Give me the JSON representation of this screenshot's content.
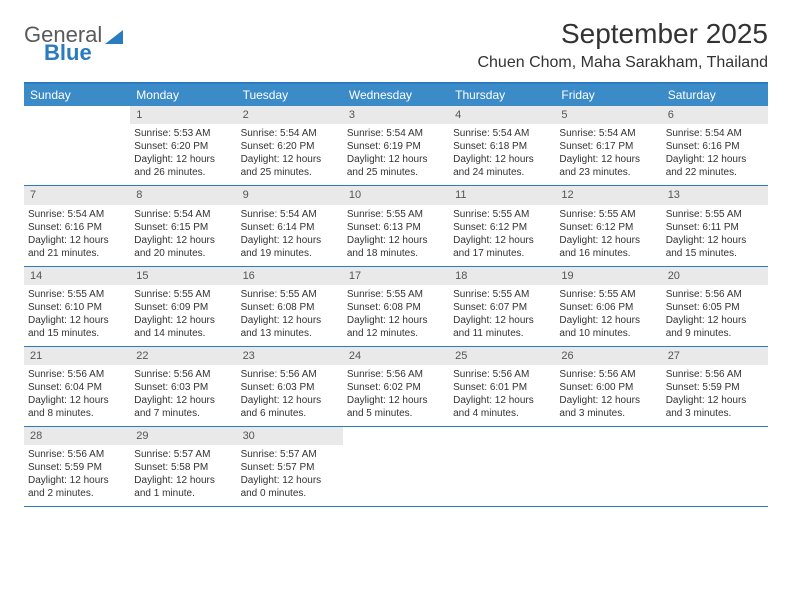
{
  "logo": {
    "word1": "General",
    "word2": "Blue"
  },
  "title": "September 2025",
  "location": "Chuen Chom, Maha Sarakham, Thailand",
  "colors": {
    "header_bar": "#3b8bc9",
    "rule": "#2a7bbf",
    "day_num_bg": "#e9e9e9",
    "text": "#333333",
    "logo_blue": "#2a7bbf"
  },
  "weekdays": [
    "Sunday",
    "Monday",
    "Tuesday",
    "Wednesday",
    "Thursday",
    "Friday",
    "Saturday"
  ],
  "weeks": [
    [
      {
        "num": "",
        "sunrise": "",
        "sunset": "",
        "daylight": ""
      },
      {
        "num": "1",
        "sunrise": "Sunrise: 5:53 AM",
        "sunset": "Sunset: 6:20 PM",
        "daylight": "Daylight: 12 hours and 26 minutes."
      },
      {
        "num": "2",
        "sunrise": "Sunrise: 5:54 AM",
        "sunset": "Sunset: 6:20 PM",
        "daylight": "Daylight: 12 hours and 25 minutes."
      },
      {
        "num": "3",
        "sunrise": "Sunrise: 5:54 AM",
        "sunset": "Sunset: 6:19 PM",
        "daylight": "Daylight: 12 hours and 25 minutes."
      },
      {
        "num": "4",
        "sunrise": "Sunrise: 5:54 AM",
        "sunset": "Sunset: 6:18 PM",
        "daylight": "Daylight: 12 hours and 24 minutes."
      },
      {
        "num": "5",
        "sunrise": "Sunrise: 5:54 AM",
        "sunset": "Sunset: 6:17 PM",
        "daylight": "Daylight: 12 hours and 23 minutes."
      },
      {
        "num": "6",
        "sunrise": "Sunrise: 5:54 AM",
        "sunset": "Sunset: 6:16 PM",
        "daylight": "Daylight: 12 hours and 22 minutes."
      }
    ],
    [
      {
        "num": "7",
        "sunrise": "Sunrise: 5:54 AM",
        "sunset": "Sunset: 6:16 PM",
        "daylight": "Daylight: 12 hours and 21 minutes."
      },
      {
        "num": "8",
        "sunrise": "Sunrise: 5:54 AM",
        "sunset": "Sunset: 6:15 PM",
        "daylight": "Daylight: 12 hours and 20 minutes."
      },
      {
        "num": "9",
        "sunrise": "Sunrise: 5:54 AM",
        "sunset": "Sunset: 6:14 PM",
        "daylight": "Daylight: 12 hours and 19 minutes."
      },
      {
        "num": "10",
        "sunrise": "Sunrise: 5:55 AM",
        "sunset": "Sunset: 6:13 PM",
        "daylight": "Daylight: 12 hours and 18 minutes."
      },
      {
        "num": "11",
        "sunrise": "Sunrise: 5:55 AM",
        "sunset": "Sunset: 6:12 PM",
        "daylight": "Daylight: 12 hours and 17 minutes."
      },
      {
        "num": "12",
        "sunrise": "Sunrise: 5:55 AM",
        "sunset": "Sunset: 6:12 PM",
        "daylight": "Daylight: 12 hours and 16 minutes."
      },
      {
        "num": "13",
        "sunrise": "Sunrise: 5:55 AM",
        "sunset": "Sunset: 6:11 PM",
        "daylight": "Daylight: 12 hours and 15 minutes."
      }
    ],
    [
      {
        "num": "14",
        "sunrise": "Sunrise: 5:55 AM",
        "sunset": "Sunset: 6:10 PM",
        "daylight": "Daylight: 12 hours and 15 minutes."
      },
      {
        "num": "15",
        "sunrise": "Sunrise: 5:55 AM",
        "sunset": "Sunset: 6:09 PM",
        "daylight": "Daylight: 12 hours and 14 minutes."
      },
      {
        "num": "16",
        "sunrise": "Sunrise: 5:55 AM",
        "sunset": "Sunset: 6:08 PM",
        "daylight": "Daylight: 12 hours and 13 minutes."
      },
      {
        "num": "17",
        "sunrise": "Sunrise: 5:55 AM",
        "sunset": "Sunset: 6:08 PM",
        "daylight": "Daylight: 12 hours and 12 minutes."
      },
      {
        "num": "18",
        "sunrise": "Sunrise: 5:55 AM",
        "sunset": "Sunset: 6:07 PM",
        "daylight": "Daylight: 12 hours and 11 minutes."
      },
      {
        "num": "19",
        "sunrise": "Sunrise: 5:55 AM",
        "sunset": "Sunset: 6:06 PM",
        "daylight": "Daylight: 12 hours and 10 minutes."
      },
      {
        "num": "20",
        "sunrise": "Sunrise: 5:56 AM",
        "sunset": "Sunset: 6:05 PM",
        "daylight": "Daylight: 12 hours and 9 minutes."
      }
    ],
    [
      {
        "num": "21",
        "sunrise": "Sunrise: 5:56 AM",
        "sunset": "Sunset: 6:04 PM",
        "daylight": "Daylight: 12 hours and 8 minutes."
      },
      {
        "num": "22",
        "sunrise": "Sunrise: 5:56 AM",
        "sunset": "Sunset: 6:03 PM",
        "daylight": "Daylight: 12 hours and 7 minutes."
      },
      {
        "num": "23",
        "sunrise": "Sunrise: 5:56 AM",
        "sunset": "Sunset: 6:03 PM",
        "daylight": "Daylight: 12 hours and 6 minutes."
      },
      {
        "num": "24",
        "sunrise": "Sunrise: 5:56 AM",
        "sunset": "Sunset: 6:02 PM",
        "daylight": "Daylight: 12 hours and 5 minutes."
      },
      {
        "num": "25",
        "sunrise": "Sunrise: 5:56 AM",
        "sunset": "Sunset: 6:01 PM",
        "daylight": "Daylight: 12 hours and 4 minutes."
      },
      {
        "num": "26",
        "sunrise": "Sunrise: 5:56 AM",
        "sunset": "Sunset: 6:00 PM",
        "daylight": "Daylight: 12 hours and 3 minutes."
      },
      {
        "num": "27",
        "sunrise": "Sunrise: 5:56 AM",
        "sunset": "Sunset: 5:59 PM",
        "daylight": "Daylight: 12 hours and 3 minutes."
      }
    ],
    [
      {
        "num": "28",
        "sunrise": "Sunrise: 5:56 AM",
        "sunset": "Sunset: 5:59 PM",
        "daylight": "Daylight: 12 hours and 2 minutes."
      },
      {
        "num": "29",
        "sunrise": "Sunrise: 5:57 AM",
        "sunset": "Sunset: 5:58 PM",
        "daylight": "Daylight: 12 hours and 1 minute."
      },
      {
        "num": "30",
        "sunrise": "Sunrise: 5:57 AM",
        "sunset": "Sunset: 5:57 PM",
        "daylight": "Daylight: 12 hours and 0 minutes."
      },
      {
        "num": "",
        "sunrise": "",
        "sunset": "",
        "daylight": ""
      },
      {
        "num": "",
        "sunrise": "",
        "sunset": "",
        "daylight": ""
      },
      {
        "num": "",
        "sunrise": "",
        "sunset": "",
        "daylight": ""
      },
      {
        "num": "",
        "sunrise": "",
        "sunset": "",
        "daylight": ""
      }
    ]
  ]
}
